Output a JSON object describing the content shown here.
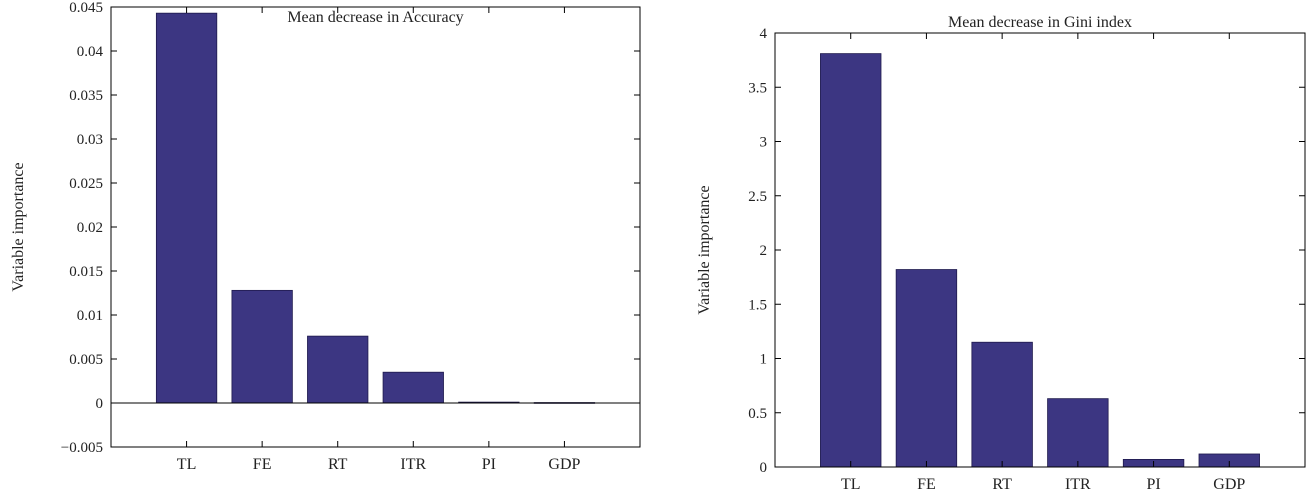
{
  "chart_data": [
    {
      "type": "bar",
      "title": "Mean decrease in Accuracy",
      "ylabel": "Variable importance",
      "xlabel": "",
      "categories": [
        "TL",
        "FE",
        "RT",
        "ITR",
        "PI",
        "GDP"
      ],
      "values": [
        0.0443,
        0.0128,
        0.0076,
        0.0035,
        0.0001,
        5e-05
      ],
      "ylim": [
        -0.005,
        0.045
      ],
      "yticks": [
        -0.005,
        0,
        0.005,
        0.01,
        0.015,
        0.02,
        0.025,
        0.03,
        0.035,
        0.04,
        0.045
      ],
      "ytick_labels": [
        "−0.005",
        "0",
        "0.005",
        "0.01",
        "0.015",
        "0.02",
        "0.025",
        "0.03",
        "0.035",
        "0.04",
        "0.045"
      ],
      "zero_line": true,
      "grid": false,
      "bar_color": "#3c3682"
    },
    {
      "type": "bar",
      "title": "Mean decrease in Gini index",
      "ylabel": "Variable importance",
      "xlabel": "",
      "categories": [
        "TL",
        "FE",
        "RT",
        "ITR",
        "PI",
        "GDP"
      ],
      "values": [
        3.81,
        1.82,
        1.15,
        0.63,
        0.07,
        0.12
      ],
      "ylim": [
        0,
        4
      ],
      "yticks": [
        0,
        0.5,
        1,
        1.5,
        2,
        2.5,
        3,
        3.5,
        4
      ],
      "ytick_labels": [
        "0",
        "0.5",
        "1",
        "1.5",
        "2",
        "2.5",
        "3",
        "3.5",
        "4"
      ],
      "zero_line": false,
      "grid": false,
      "bar_color": "#3c3682"
    }
  ]
}
